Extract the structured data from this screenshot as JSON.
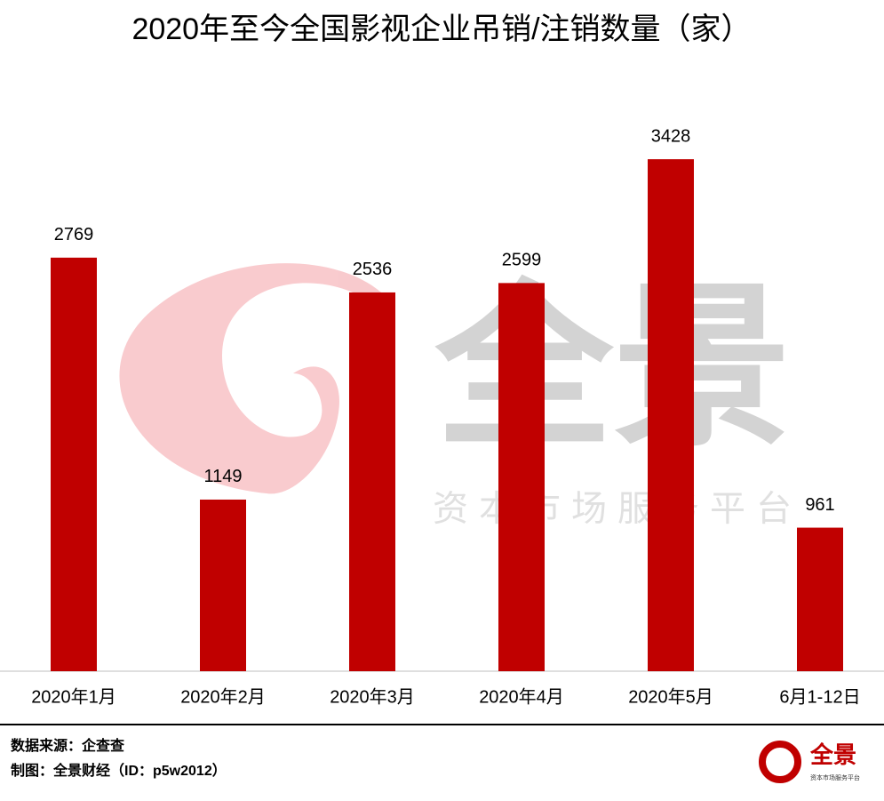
{
  "chart_data": {
    "type": "bar",
    "title": "2020年至今全国影视企业吊销/注销数量（家）",
    "categories": [
      "2020年1月",
      "2020年2月",
      "2020年3月",
      "2020年4月",
      "2020年5月",
      "6月1-12日"
    ],
    "values": [
      2769,
      1149,
      2536,
      2599,
      3428,
      961
    ],
    "color": "#c00000",
    "ylim": [
      0,
      4000
    ]
  },
  "footer": {
    "source": "数据来源：企查查",
    "credit": "制图：全景财经（ID：p5w2012）"
  },
  "watermark": {
    "brand": "全景",
    "slogan": "资本市场服务平台"
  },
  "logo": {
    "brand": "全景",
    "slogan": "资本市场服务平台"
  }
}
